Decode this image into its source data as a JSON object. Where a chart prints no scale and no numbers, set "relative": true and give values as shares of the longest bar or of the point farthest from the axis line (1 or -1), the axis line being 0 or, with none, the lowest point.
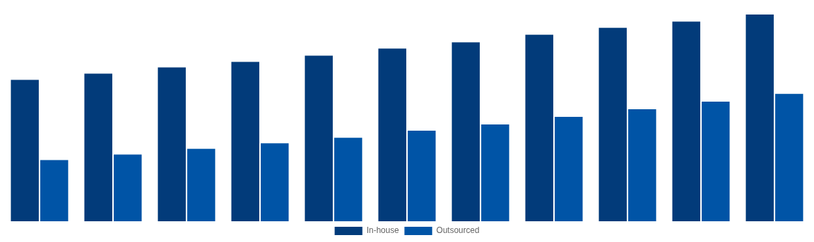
{
  "chart_data": {
    "type": "bar",
    "relative": true,
    "categories": [
      null,
      null,
      null,
      null,
      null,
      null,
      null,
      null,
      null,
      null,
      null
    ],
    "series": [
      {
        "name": "In-house",
        "color": "#023b7a",
        "values": [
          0.684,
          0.714,
          0.744,
          0.771,
          0.801,
          0.835,
          0.865,
          0.902,
          0.936,
          0.966,
          1
        ]
      },
      {
        "name": "Outsourced",
        "color": "#0054a6",
        "values": [
          0.296,
          0.323,
          0.35,
          0.377,
          0.404,
          0.438,
          0.468,
          0.505,
          0.542,
          0.579,
          0.616
        ]
      }
    ],
    "legend": "bottom"
  }
}
